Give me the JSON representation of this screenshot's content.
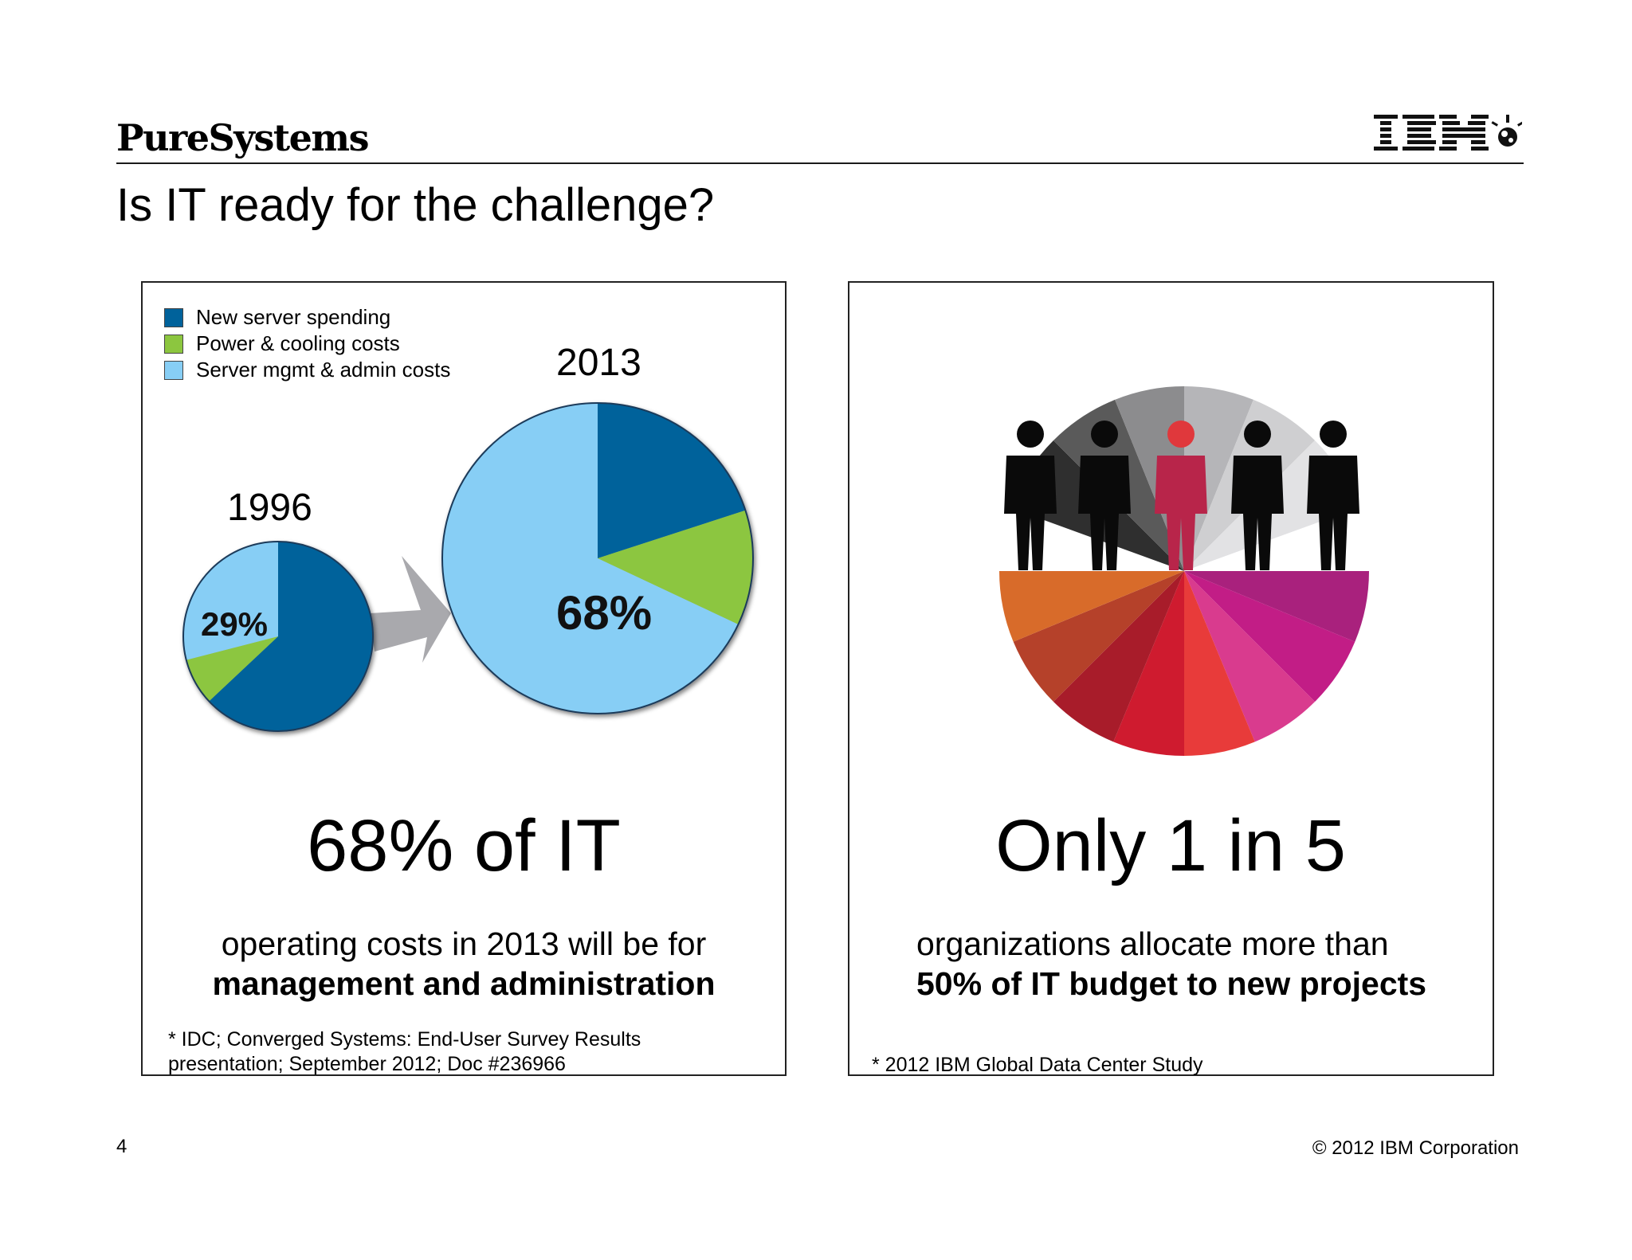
{
  "header": {
    "brand": "PureSystems",
    "logo_name": "ibm-logo",
    "title": "Is IT ready for the challenge?"
  },
  "left_panel": {
    "headline": "68% of IT",
    "subtext_line1": "operating costs in 2013 will be for",
    "subtext_line2": "management and administration",
    "footnote_line1": "* IDC; Converged Systems: End-User Survey Results",
    "footnote_line2": "presentation; September 2012; Doc #236966"
  },
  "right_panel": {
    "graphic": "people-pie-graphic",
    "headline": "Only 1 in 5",
    "subtext_line1": "organizations allocate more than",
    "subtext_line2": "50% of IT budget to new projects",
    "footnote": "* 2012 IBM Global Data Center Study"
  },
  "chart_data": [
    {
      "type": "pie",
      "title": "1996",
      "categories": [
        "New server spending",
        "Power & cooling costs",
        "Server mgmt & admin costs"
      ],
      "values": [
        63,
        8,
        29
      ],
      "data_labels": [
        "",
        "",
        "29%"
      ],
      "colors": [
        "#00629b",
        "#8cc63f",
        "#87cef5"
      ],
      "legend_position": "top-left"
    },
    {
      "type": "pie",
      "title": "2013",
      "categories": [
        "New server spending",
        "Power & cooling costs",
        "Server mgmt & admin costs"
      ],
      "values": [
        20,
        12,
        68
      ],
      "data_labels": [
        "",
        "",
        "68%"
      ],
      "colors": [
        "#00629b",
        "#8cc63f",
        "#87cef5"
      ],
      "legend_position": "top-left"
    }
  ],
  "footer": {
    "page_number": "4",
    "copyright": "© 2012 IBM Corporation"
  }
}
